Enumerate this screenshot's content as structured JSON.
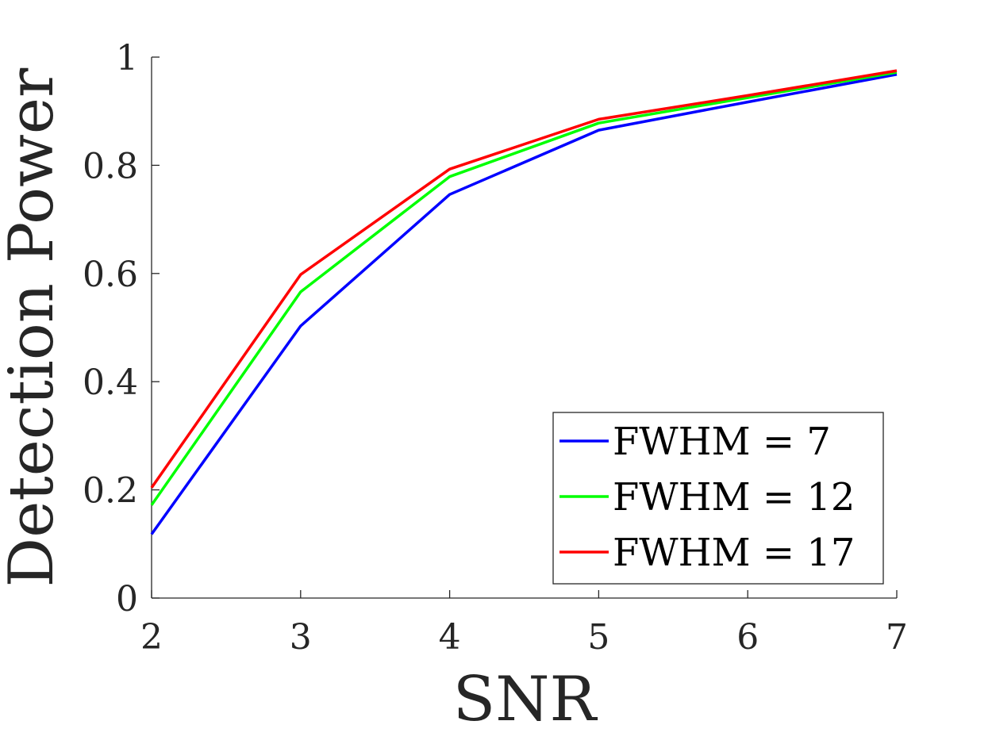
{
  "chart_data": {
    "type": "line",
    "xlabel": "SNR",
    "ylabel": "Detection Power",
    "xlim": [
      2,
      7
    ],
    "ylim": [
      0,
      1
    ],
    "xticks": [
      2,
      3,
      4,
      5,
      6,
      7
    ],
    "yticks": [
      0,
      0.2,
      0.4,
      0.6,
      0.8,
      1
    ],
    "ytick_labels": [
      "0",
      "0.2",
      "0.4",
      "0.6",
      "0.8",
      "1"
    ],
    "grid": false,
    "legend_position": "bottom-right",
    "x": [
      2,
      3,
      4,
      5,
      6,
      7
    ],
    "series": [
      {
        "name": "FWHM = 7",
        "color": "#0000ff",
        "values": [
          0.118,
          0.503,
          0.746,
          0.865,
          0.917,
          0.968
        ]
      },
      {
        "name": "FWHM = 12",
        "color": "#00ff00",
        "values": [
          0.172,
          0.566,
          0.779,
          0.878,
          0.925,
          0.972
        ]
      },
      {
        "name": "FWHM = 17",
        "color": "#ff0000",
        "values": [
          0.204,
          0.598,
          0.793,
          0.885,
          0.929,
          0.975
        ]
      }
    ]
  }
}
